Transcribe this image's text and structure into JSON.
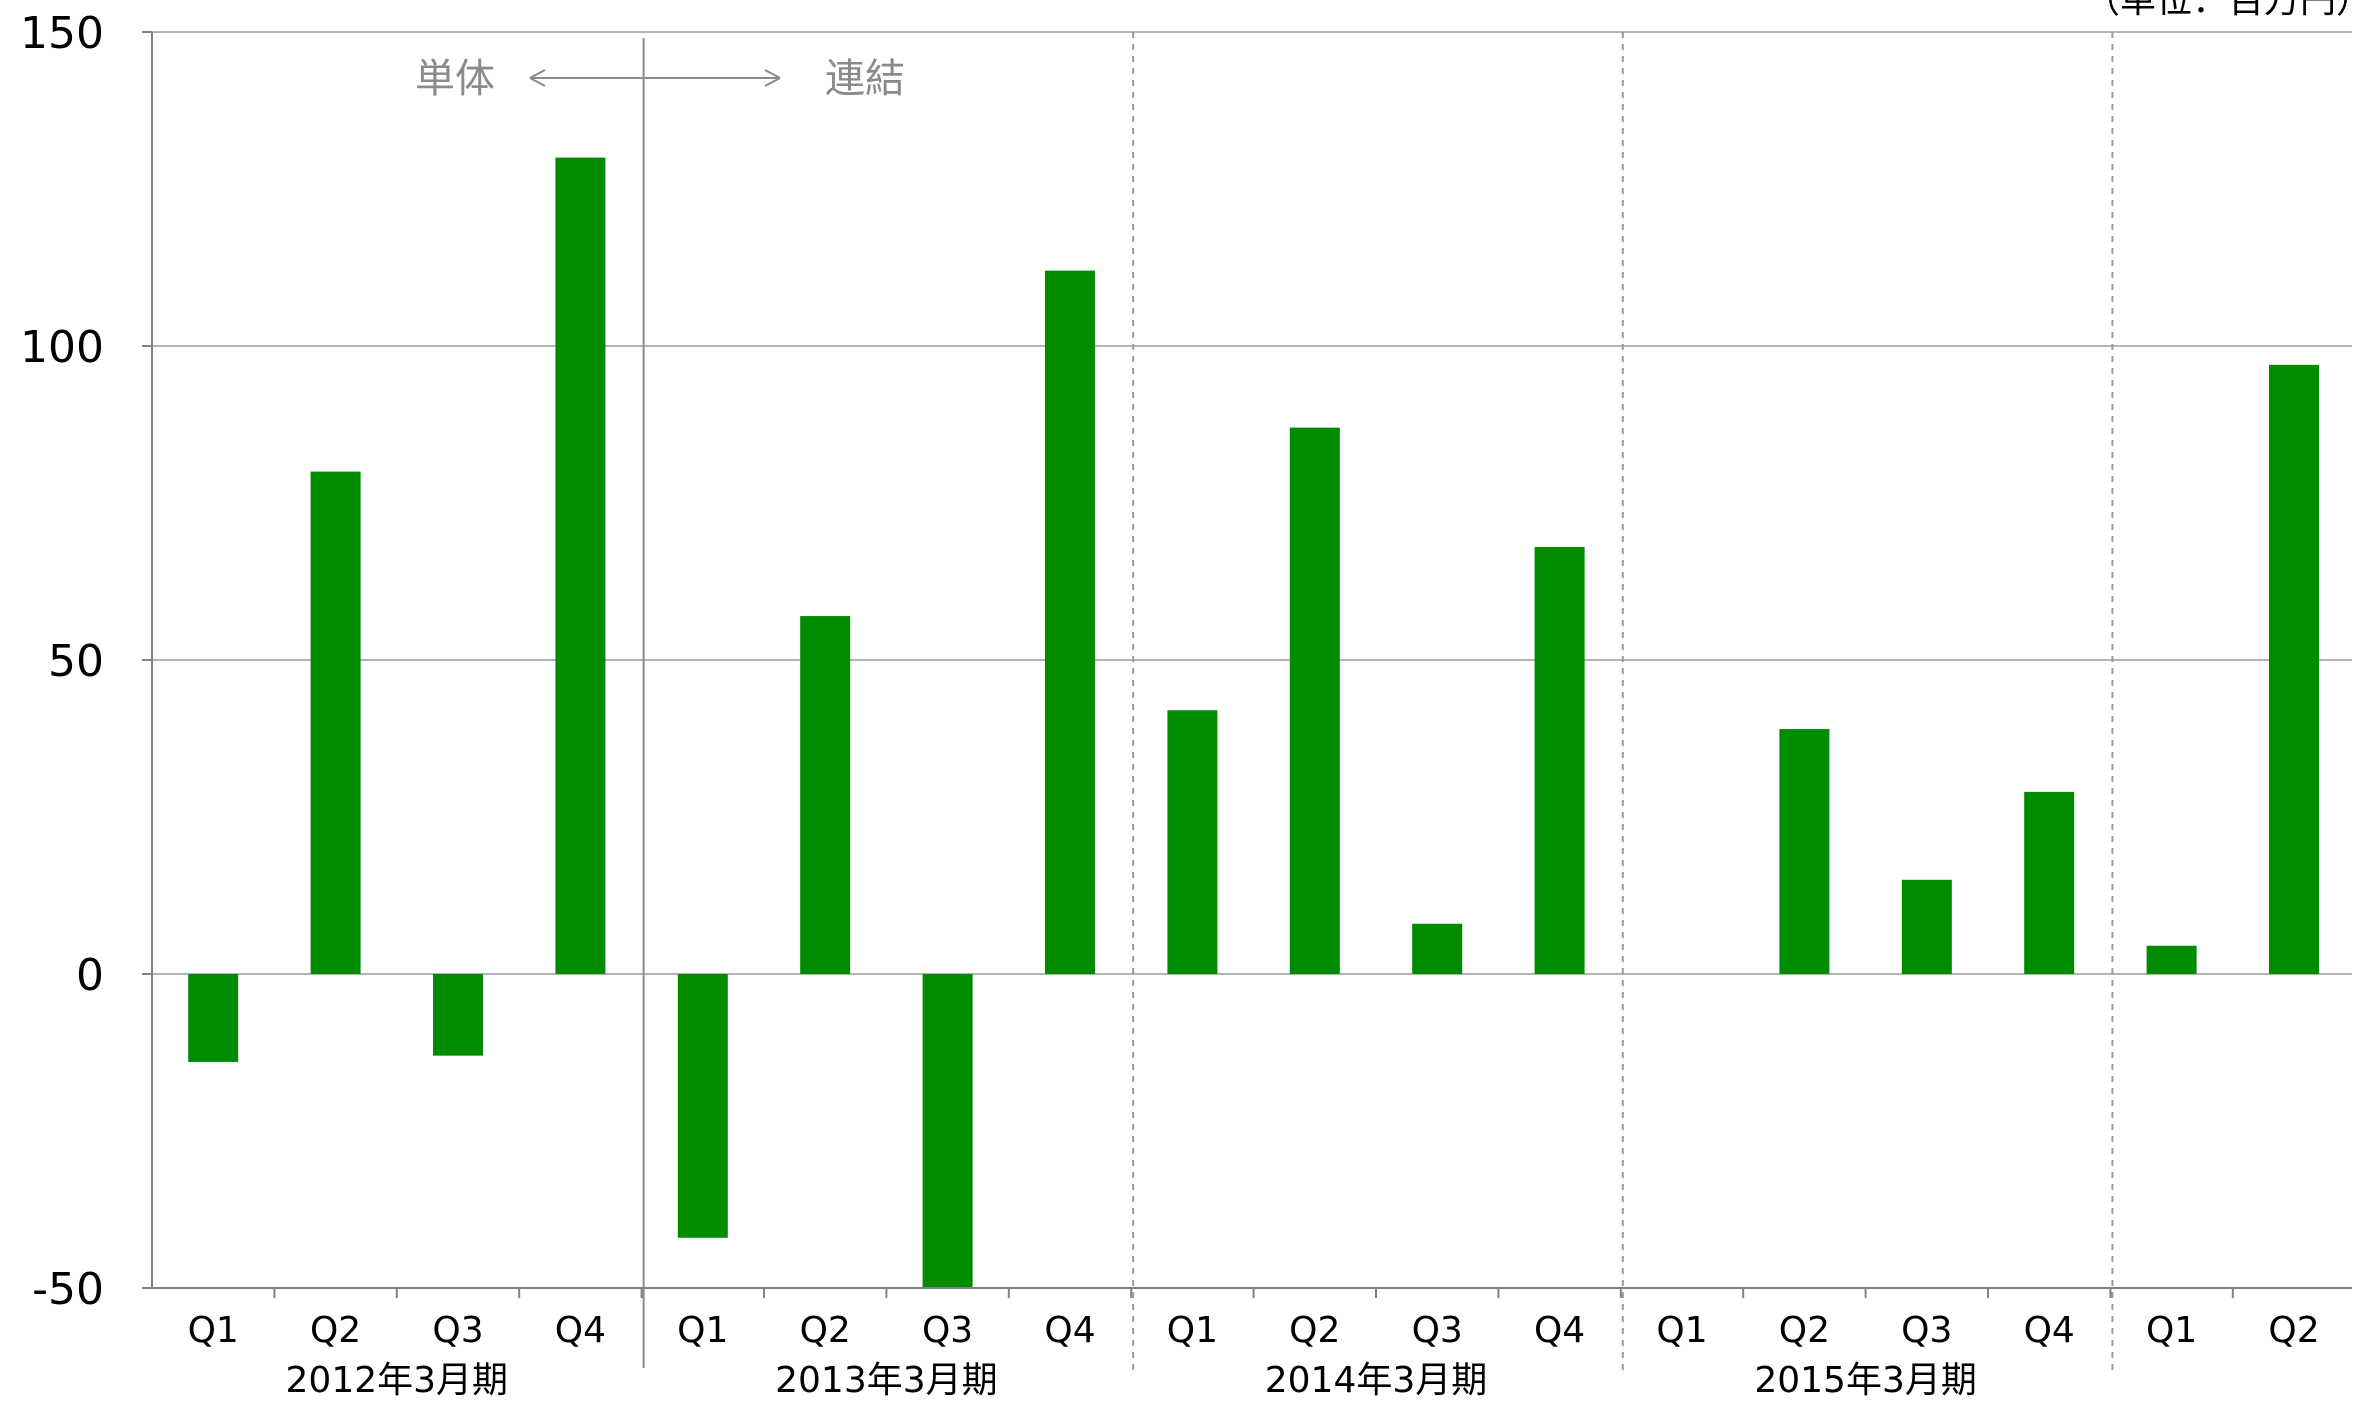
{
  "chart_data": {
    "type": "bar",
    "unit_label": "（単位：百万円）",
    "yticks": [
      "150",
      "100",
      "50",
      "0",
      "-50"
    ],
    "ylim": [
      -50,
      150
    ],
    "grid": true,
    "bar_color": "#008c00",
    "groups": [
      {
        "label": "2012年3月期",
        "categories": [
          "Q1",
          "Q2",
          "Q3",
          "Q4"
        ],
        "values": [
          -14,
          80,
          -13,
          130
        ]
      },
      {
        "label": "2013年3月期",
        "categories": [
          "Q1",
          "Q2",
          "Q3",
          "Q4"
        ],
        "values": [
          -42,
          57,
          -50,
          112
        ]
      },
      {
        "label": "2014年3月期",
        "categories": [
          "Q1",
          "Q2",
          "Q3",
          "Q4"
        ],
        "values": [
          42,
          87,
          8,
          68
        ]
      },
      {
        "label": "2015年3月期",
        "categories": [
          "Q1",
          "Q2",
          "Q3",
          "Q4"
        ],
        "values": [
          0,
          39,
          15,
          29
        ]
      },
      {
        "label": "",
        "categories": [
          "Q1",
          "Q2"
        ],
        "values": [
          4.5,
          97
        ]
      }
    ],
    "annotation": {
      "left": "単体",
      "right": "連結"
    }
  }
}
